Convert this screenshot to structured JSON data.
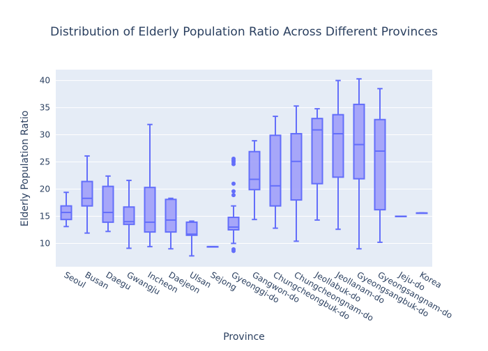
{
  "chart_data": {
    "type": "box",
    "title": "Distribution of Elderly Population Ratio Across Different Provinces",
    "xlabel": "Province",
    "ylabel": "Elderly Population Ratio",
    "ylim": [
      5.7,
      42
    ],
    "yticks": [
      10,
      15,
      20,
      25,
      30,
      35,
      40
    ],
    "grid": true,
    "legend": false,
    "colors": {
      "fill": "#9b9af9",
      "line": "#636efa",
      "plot_bg": "#e5ecf6",
      "grid": "#ffffff",
      "text": "#2a3f5f"
    },
    "categories": [
      "Seoul",
      "Busan",
      "Daegu",
      "Gwangju",
      "Incheon",
      "Daejeon",
      "Ulsan",
      "Sejong",
      "Gyeonggi-do",
      "Gangwon-do",
      "Chungcheongbuk-do",
      "Chungcheongnam-do",
      "Jeollabuk-do",
      "Jeollanam-do",
      "Gyeongsangbuk-do",
      "Gyeongsangnam-do",
      "Jeju-do",
      "Korea"
    ],
    "boxes": [
      {
        "min": 13.1,
        "q1": 14.4,
        "median": 15.7,
        "q3": 16.9,
        "max": 19.4,
        "outliers": []
      },
      {
        "min": 11.9,
        "q1": 16.9,
        "median": 18.3,
        "q3": 21.4,
        "max": 26.1,
        "outliers": []
      },
      {
        "min": 12.2,
        "q1": 13.9,
        "median": 15.7,
        "q3": 20.5,
        "max": 22.4,
        "outliers": []
      },
      {
        "min": 9.1,
        "q1": 13.5,
        "median": 14.0,
        "q3": 16.7,
        "max": 21.6,
        "outliers": []
      },
      {
        "min": 9.4,
        "q1": 12.1,
        "median": 13.9,
        "q3": 20.3,
        "max": 31.9,
        "outliers": []
      },
      {
        "min": 9.0,
        "q1": 12.1,
        "median": 14.3,
        "q3": 18.1,
        "max": 18.3,
        "outliers": []
      },
      {
        "min": 7.7,
        "q1": 11.5,
        "median": 11.7,
        "q3": 13.9,
        "max": 14.1,
        "outliers": []
      },
      {
        "min": 9.4,
        "q1": 9.4,
        "median": 9.4,
        "q3": 9.4,
        "max": 9.4,
        "outliers": []
      },
      {
        "min": 10.0,
        "q1": 12.5,
        "median": 13.0,
        "q3": 14.8,
        "max": 16.9,
        "outliers": [
          8.6,
          8.9,
          18.9,
          19.6,
          21.0,
          24.6,
          25.0,
          25.3,
          25.6
        ]
      },
      {
        "min": 14.4,
        "q1": 19.9,
        "median": 21.8,
        "q3": 26.9,
        "max": 28.9,
        "outliers": []
      },
      {
        "min": 12.8,
        "q1": 16.9,
        "median": 20.6,
        "q3": 29.9,
        "max": 33.4,
        "outliers": []
      },
      {
        "min": 10.4,
        "q1": 18.0,
        "median": 25.1,
        "q3": 30.2,
        "max": 35.3,
        "outliers": []
      },
      {
        "min": 14.3,
        "q1": 21.0,
        "median": 30.9,
        "q3": 33.0,
        "max": 34.8,
        "outliers": []
      },
      {
        "min": 12.6,
        "q1": 22.2,
        "median": 30.2,
        "q3": 33.7,
        "max": 40.0,
        "outliers": []
      },
      {
        "min": 9.0,
        "q1": 21.9,
        "median": 28.2,
        "q3": 35.6,
        "max": 40.3,
        "outliers": []
      },
      {
        "min": 10.2,
        "q1": 16.2,
        "median": 27.0,
        "q3": 32.8,
        "max": 38.5,
        "outliers": []
      },
      {
        "min": 15.0,
        "q1": 15.0,
        "median": 15.0,
        "q3": 15.0,
        "max": 15.0,
        "outliers": []
      },
      {
        "min": 15.6,
        "q1": 15.6,
        "median": 15.6,
        "q3": 15.6,
        "max": 15.6,
        "outliers": []
      }
    ]
  }
}
